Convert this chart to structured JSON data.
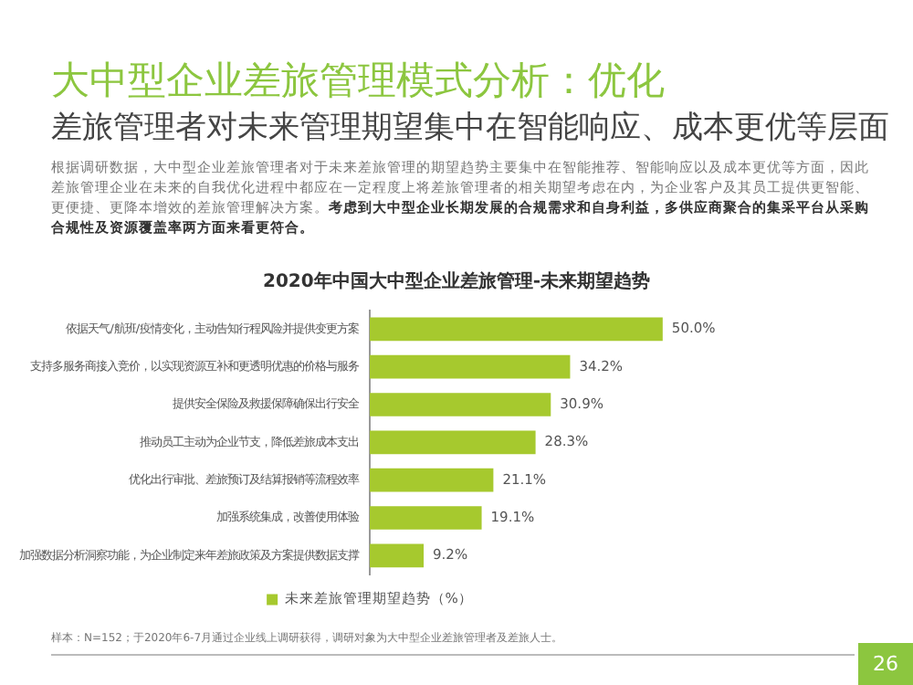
{
  "chart_data": {
    "type": "bar",
    "orientation": "horizontal",
    "title": "大中型企业差旅管理模式分析：优化",
    "subtitle": "差旅管理者对未来管理期望集中在智能响应、成本更优等层面",
    "annotations": [
      "根据调研数据，大中型企业差旅管理者对于未来差旅管理的期望趋势主要集中在智能推荐、智能响应以及成本更优等方面，因此差旅管理企业在未来的自我优化进程中都应在一定程度上将差旅管理者的相关期望考虑在内，为企业客户及其员工提供更智能、更便捷、更降本增效的差旅管理解决方案。",
      "考虑到大中型企业长期发展的合规需求和自身利益，多供应商聚合的集采平台从采购合规性及资源覆盖率两方面来看更符合。",
      "2020年中国大中型企业差旅管理-未来期望趋势",
      "样本：N=152；于2020年6-7月通过企业线上调研获得，调研对象为大中型企业差旅管理者及差旅人士。",
      "26"
    ],
    "categories": [
      "依据天气/航班/疫情变化，主动告知行程风险并提供变更方案",
      "支持多服务商接入竞价，以实现资源互补和更透明优惠的价格与服务",
      "提供安全保险及救援保障确保出行安全",
      "推动员工主动为企业节支，降低差旅成本支出",
      "优化出行审批、差旅预订及结算报销等流程效率",
      "加强系统集成，改善使用体验",
      "加强数据分析洞察功能，为企业制定来年差旅政策及方案提供数据支撑"
    ],
    "series": [
      {
        "name": "未来差旅管理期望趋势（%）",
        "color": "#a6c92e",
        "values": [
          50.0,
          34.2,
          30.9,
          28.3,
          21.1,
          19.1,
          9.2
        ],
        "value_labels": [
          "50.0%",
          "34.2%",
          "30.9%",
          "28.3%",
          "21.1%",
          "19.1%",
          "9.2%"
        ]
      }
    ],
    "tick_labels": "y",
    "legend": "bottom"
  }
}
